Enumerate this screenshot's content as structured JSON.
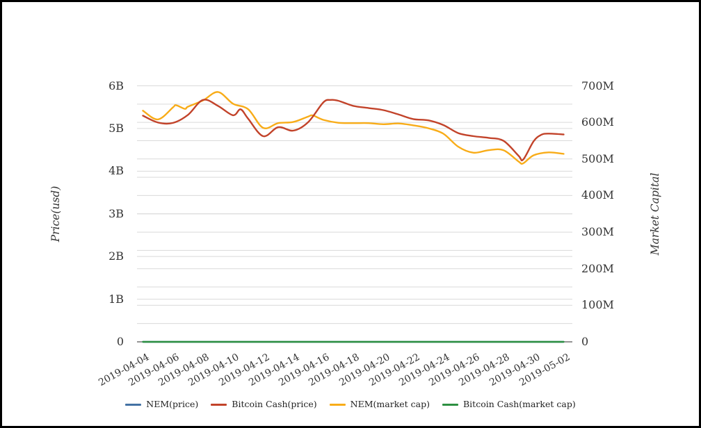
{
  "window": {
    "background": "#ffffff",
    "border_color": "#000000",
    "axis_text_color": "#333333"
  },
  "chart_data": {
    "type": "line",
    "title": "",
    "x": {
      "start_date": "2019-04-04",
      "end_date": "2019-05-02",
      "point_interval_days": 1,
      "tick_labels": [
        "2019-04-04",
        "2019-04-06",
        "2019-04-08",
        "2019-04-10",
        "2019-04-12",
        "2019-04-14",
        "2019-04-16",
        "2019-04-18",
        "2019-04-20",
        "2019-04-22",
        "2019-04-24",
        "2019-04-26",
        "2019-04-28",
        "2019-04-30",
        "2019-05-02"
      ],
      "tick_step_days": 2
    },
    "y_left": {
      "title": "Price(usd)",
      "ticks": [
        "0",
        "1B",
        "2B",
        "3B",
        "4B",
        "5B",
        "6B"
      ],
      "tick_values_B": [
        0,
        1,
        2,
        3,
        4,
        5,
        6
      ],
      "range_B": [
        0,
        6
      ]
    },
    "y_right": {
      "title": "Market Capital",
      "ticks": [
        "0",
        "100M",
        "200M",
        "300M",
        "400M",
        "500M",
        "600M",
        "700M"
      ],
      "tick_values_M": [
        0,
        100,
        200,
        300,
        400,
        500,
        600,
        700
      ],
      "range_M": [
        0,
        700
      ],
      "minor_grid_step_M": 50
    },
    "grid": {
      "show": true,
      "color": "#d9d9d9",
      "baseline_color": "#555555"
    },
    "legend_position": "bottom-center",
    "draw_order": [
      0,
      3,
      2,
      1
    ],
    "series": [
      {
        "name": "NEM(price)",
        "color": "#4472a4",
        "axis": "left",
        "unit": "B USD",
        "points_day_value": [
          [
            0,
            0
          ],
          [
            14,
            0
          ],
          [
            28,
            0
          ]
        ]
      },
      {
        "name": "Bitcoin Cash(price)",
        "color": "#c2432a",
        "axis": "left",
        "unit": "B USD",
        "points_day_value": [
          [
            0,
            5.3
          ],
          [
            1,
            5.14
          ],
          [
            2,
            5.13
          ],
          [
            3,
            5.32
          ],
          [
            4,
            5.67
          ],
          [
            5,
            5.53
          ],
          [
            6,
            5.31
          ],
          [
            6.5,
            5.45
          ],
          [
            7,
            5.23
          ],
          [
            8,
            4.82
          ],
          [
            9,
            5.03
          ],
          [
            10,
            4.95
          ],
          [
            11,
            5.15
          ],
          [
            12,
            5.61
          ],
          [
            12.5,
            5.67
          ],
          [
            13,
            5.65
          ],
          [
            14,
            5.53
          ],
          [
            15,
            5.48
          ],
          [
            16,
            5.43
          ],
          [
            17,
            5.33
          ],
          [
            18,
            5.22
          ],
          [
            19,
            5.19
          ],
          [
            20,
            5.08
          ],
          [
            21,
            4.89
          ],
          [
            22,
            4.82
          ],
          [
            23,
            4.78
          ],
          [
            24,
            4.71
          ],
          [
            25,
            4.36
          ],
          [
            25.3,
            4.27
          ],
          [
            26,
            4.7
          ],
          [
            26.5,
            4.85
          ],
          [
            27,
            4.88
          ],
          [
            28,
            4.86
          ]
        ]
      },
      {
        "name": "NEM(market cap)",
        "color": "#f8ac18",
        "axis": "right",
        "unit": "M USD",
        "points_day_value": [
          [
            0,
            632
          ],
          [
            1,
            608
          ],
          [
            2,
            641
          ],
          [
            2.2,
            647
          ],
          [
            2.8,
            637
          ],
          [
            3,
            643
          ],
          [
            4,
            660
          ],
          [
            5,
            683
          ],
          [
            6,
            651
          ],
          [
            7,
            636
          ],
          [
            8,
            585
          ],
          [
            9,
            598
          ],
          [
            10,
            601
          ],
          [
            11,
            616
          ],
          [
            11.3,
            619
          ],
          [
            12,
            607
          ],
          [
            13,
            599
          ],
          [
            14,
            598
          ],
          [
            15,
            598
          ],
          [
            16,
            595
          ],
          [
            17,
            597
          ],
          [
            18,
            592
          ],
          [
            19,
            584
          ],
          [
            20,
            569
          ],
          [
            21,
            533
          ],
          [
            22,
            517
          ],
          [
            23,
            524
          ],
          [
            24,
            524
          ],
          [
            25,
            493
          ],
          [
            25.3,
            488
          ],
          [
            26,
            510
          ],
          [
            27,
            518
          ],
          [
            28,
            514
          ]
        ]
      },
      {
        "name": "Bitcoin Cash(market cap)",
        "color": "#2d9041",
        "axis": "right",
        "unit": "M USD",
        "points_day_value": [
          [
            0,
            0
          ],
          [
            14,
            0
          ],
          [
            28,
            0
          ]
        ]
      }
    ]
  }
}
